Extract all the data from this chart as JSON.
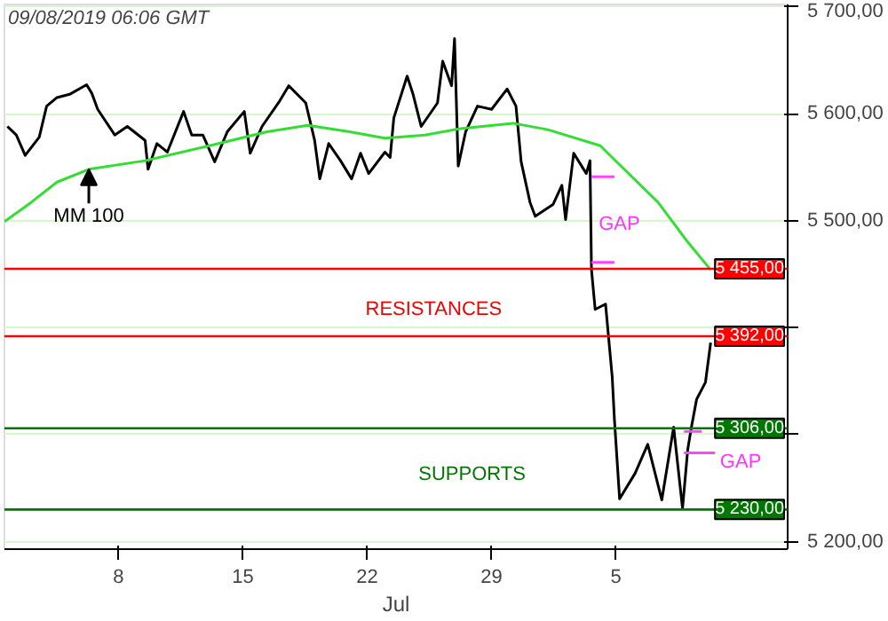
{
  "chart_data": {
    "type": "line",
    "title": "09/08/2019  06:06 GMT",
    "xlabel": "Jul",
    "xlim": [
      "2019-07-01T14:00",
      "2019-08-14T16:00"
    ],
    "xticks": [
      {
        "value": "2019-07-08",
        "label": "8"
      },
      {
        "value": "2019-07-15",
        "label": "15"
      },
      {
        "value": "2019-07-22",
        "label": "22"
      },
      {
        "value": "2019-07-29",
        "label": "29"
      },
      {
        "value": "2019-08-05",
        "label": "5"
      }
    ],
    "ylim": [
      5193,
      5702
    ],
    "yticks": [
      {
        "value": 5200,
        "label": "5 200,00"
      },
      {
        "value": 5300,
        "label": null
      },
      {
        "value": 5400,
        "label": null
      },
      {
        "value": 5500,
        "label": "5 500,00"
      },
      {
        "value": 5600,
        "label": "5 600,00"
      },
      {
        "value": 5700,
        "label": "5 700,00"
      }
    ],
    "grid": "y",
    "marker": "none",
    "line_style": "solid",
    "series": [
      {
        "color": "#000000",
        "x": [
          "2019-07-01T18:00",
          "2019-07-02T06:00",
          "2019-07-02T18:00",
          "2019-07-03T13:00",
          "2019-07-03T23:00",
          "2019-07-04T13:00",
          "2019-07-05T06:00",
          "2019-07-06T05:00",
          "2019-07-06T12:00",
          "2019-07-06T20:00",
          "2019-07-07T19:00",
          "2019-07-08T12:00",
          "2019-07-09T12:00",
          "2019-07-09T16:00",
          "2019-07-10T04:00",
          "2019-07-10T18:00",
          "2019-07-11T16:00",
          "2019-07-12T03:00",
          "2019-07-12T18:00",
          "2019-07-13T10:00",
          "2019-07-14T03:00",
          "2019-07-15T02:00",
          "2019-07-15T10:00",
          "2019-07-16T02:00",
          "2019-07-17T02:00",
          "2019-07-17T14:00",
          "2019-07-18T13:00",
          "2019-07-19T01:00",
          "2019-07-19T08:00",
          "2019-07-19T20:00",
          "2019-07-20T12:00",
          "2019-07-21T03:00",
          "2019-07-21T15:00",
          "2019-07-22T02:00",
          "2019-07-23T00:00",
          "2019-07-23T07:00",
          "2019-07-23T12:00",
          "2019-07-24T06:00",
          "2019-07-24T14:00",
          "2019-07-25T01:00",
          "2019-07-25T23:00",
          "2019-07-26T06:00",
          "2019-07-26T18:00",
          "2019-07-26T22:00",
          "2019-07-27T03:00",
          "2019-07-27T13:00",
          "2019-07-28T05:00",
          "2019-07-29T00:00",
          "2019-07-29T21:00",
          "2019-07-30T09:00",
          "2019-07-30T16:00",
          "2019-07-31T04:00",
          "2019-07-31T11:00",
          "2019-08-01T11:00",
          "2019-08-01T23:00",
          "2019-08-02T04:00",
          "2019-08-02T15:00",
          "2019-08-03T08:00",
          "2019-08-03T13:00",
          "2019-08-03T15:00",
          "2019-08-03T20:00",
          "2019-08-04T10:00",
          "2019-08-04T19:00",
          "2019-08-04T22:00",
          "2019-08-05T05:00",
          "2019-08-06T02:00",
          "2019-08-06T19:00",
          "2019-08-07T14:00",
          "2019-08-08T06:00",
          "2019-08-08T18:00",
          "2019-08-09T01:00",
          "2019-08-09T06:00",
          "2019-08-09T13:00",
          "2019-08-10T01:00",
          "2019-08-10T08:00"
        ],
        "values": [
          5588,
          5580,
          5561,
          5578,
          5607,
          5615,
          5618,
          5627,
          5619,
          5604,
          5580,
          5588,
          5575,
          5548,
          5572,
          5564,
          5602,
          5580,
          5580,
          5555,
          5583,
          5602,
          5563,
          5588,
          5612,
          5626,
          5610,
          5575,
          5539,
          5572,
          5556,
          5539,
          5563,
          5544,
          5564,
          5559,
          5596,
          5635,
          5618,
          5588,
          5610,
          5649,
          5626,
          5670,
          5551,
          5583,
          5607,
          5604,
          5623,
          5607,
          5555,
          5517,
          5504,
          5515,
          5533,
          5501,
          5563,
          5544,
          5556,
          5454,
          5417,
          5422,
          5354,
          5314,
          5240,
          5264,
          5291,
          5239,
          5307,
          5231,
          5286,
          5307,
          5333,
          5349,
          5386
        ]
      },
      {
        "color": "#33dd33",
        "x": [
          "2019-07-01T14:00",
          "2019-07-03T02:00",
          "2019-07-04T13:00",
          "2019-07-06T08:00",
          "2019-07-09T12:00",
          "2019-07-13T03:00",
          "2019-07-16T09:00",
          "2019-07-18T16:00",
          "2019-07-21T00:00",
          "2019-07-23T00:00",
          "2019-07-25T06:00",
          "2019-07-27T06:00",
          "2019-07-30T05:00",
          "2019-08-01T04:00",
          "2019-08-04T03:00",
          "2019-08-04T19:00",
          "2019-08-07T09:00",
          "2019-08-09T01:00",
          "2019-08-10T08:00"
        ],
        "values": [
          5499,
          5517,
          5536,
          5548,
          5556,
          5570,
          5583,
          5589,
          5583,
          5577,
          5580,
          5586,
          5591,
          5585,
          5570,
          5559,
          5517,
          5480,
          5454
        ]
      },
      {
        "color": "#ff44ff",
        "x": [
          "2019-08-03T15:00",
          "2019-08-04T22:00"
        ],
        "values": [
          5541,
          5541
        ]
      },
      {
        "color": "#ff44ff",
        "x": [
          "2019-08-03T15:00",
          "2019-08-04T22:00"
        ],
        "values": [
          5461,
          5461
        ]
      },
      {
        "color": "#ff44ff",
        "x": [
          "2019-08-08T20:00",
          "2019-08-09T20:00"
        ],
        "values": [
          5303,
          5303
        ]
      },
      {
        "color": "#ff44ff",
        "x": [
          "2019-08-08T20:00",
          "2019-08-10T14:00"
        ],
        "values": [
          5283,
          5283
        ]
      }
    ],
    "ref_lines": [
      {
        "axis": "y",
        "value": 5455,
        "label": "5 455,00",
        "color": "#ff0000"
      },
      {
        "axis": "y",
        "value": 5392,
        "label": "5 392,00",
        "color": "#ff0000"
      },
      {
        "axis": "y",
        "value": 5306,
        "label": "5 306,00",
        "color": "#007700"
      },
      {
        "axis": "y",
        "value": 5230,
        "label": "5 230,00",
        "color": "#007700"
      }
    ],
    "annotations": [
      {
        "text": "MM 100",
        "x": "2019-07-06T08:00",
        "y": 5548
      },
      "GAP",
      "GAP",
      "RESISTANCES",
      "SUPPORTS"
    ]
  }
}
